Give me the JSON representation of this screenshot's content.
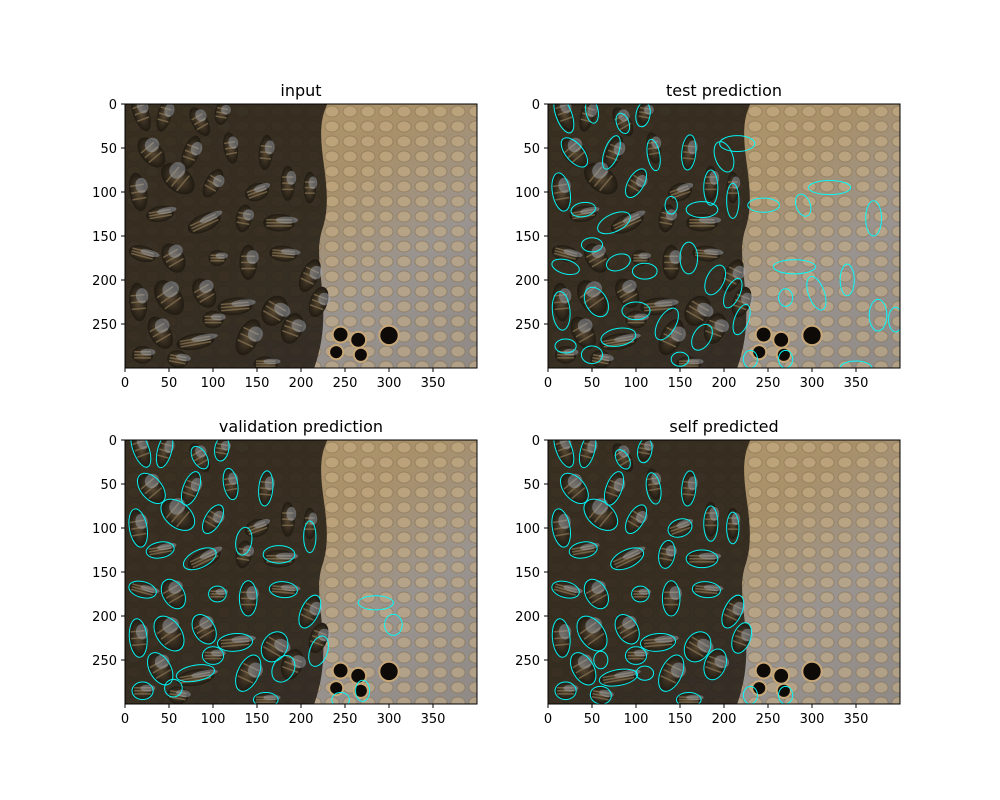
{
  "figure": {
    "panels": [
      {
        "title": "input",
        "overlay": "none",
        "x_ticks": [
          "0",
          "50",
          "100",
          "150",
          "200",
          "250",
          "300",
          "350"
        ],
        "y_ticks": [
          "0",
          "50",
          "100",
          "150",
          "200",
          "250"
        ]
      },
      {
        "title": "test prediction",
        "overlay": "cyan contours",
        "x_ticks": [
          "0",
          "50",
          "100",
          "150",
          "200",
          "250",
          "300",
          "350"
        ],
        "y_ticks": [
          "0",
          "50",
          "100",
          "150",
          "200",
          "250"
        ]
      },
      {
        "title": "validation prediction",
        "overlay": "cyan contours",
        "x_ticks": [
          "0",
          "50",
          "100",
          "150",
          "200",
          "250",
          "300",
          "350"
        ],
        "y_ticks": [
          "0",
          "50",
          "100",
          "150",
          "200",
          "250"
        ]
      },
      {
        "title": "self predicted",
        "overlay": "cyan contours",
        "x_ticks": [
          "0",
          "50",
          "100",
          "150",
          "200",
          "250",
          "300",
          "350"
        ],
        "y_ticks": [
          "0",
          "50",
          "100",
          "150",
          "200",
          "250"
        ]
      }
    ],
    "image_extent": {
      "width": 400,
      "height": 300
    },
    "contour_color": "#00ffff",
    "honeycomb_color": "#b8a078",
    "bee_color": "#2a2418"
  }
}
